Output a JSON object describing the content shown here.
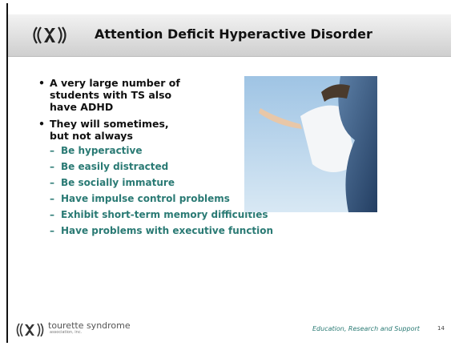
{
  "header": {
    "title": "Attention Deficit Hyperactive Disorder"
  },
  "bullets": [
    {
      "text": "A very large number of students with TS also have ADHD",
      "subitems": []
    },
    {
      "text": "They will sometimes, but not always",
      "subitems": [
        "Be hyperactive",
        "Be easily distracted",
        "Be socially immature",
        "Have impulse control problems",
        "Exhibit short-term memory difficulties",
        "Have problems with executive function"
      ]
    }
  ],
  "footer": {
    "org": "tourette syndrome",
    "org_sub": "association, inc.",
    "tagline": "Education, Research and Support",
    "page_number": "14"
  }
}
